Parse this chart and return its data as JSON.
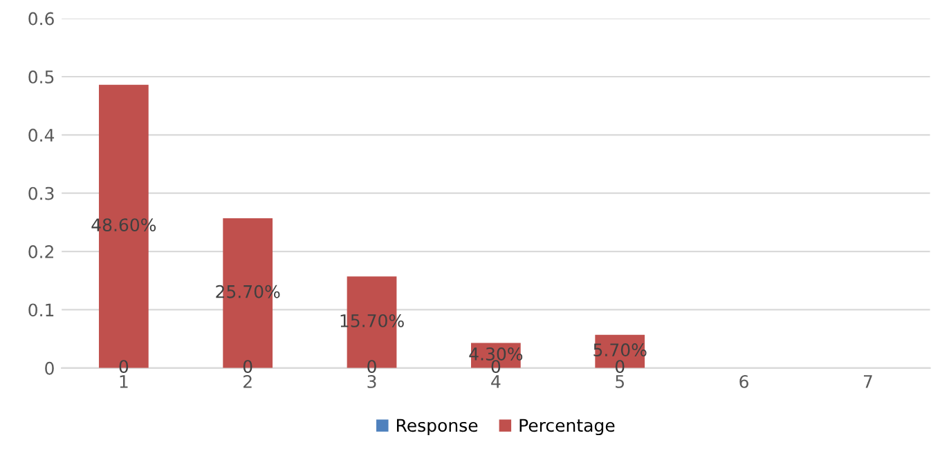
{
  "chart_data": {
    "type": "bar",
    "categories": [
      "1",
      "2",
      "3",
      "4",
      "5",
      "6",
      "7"
    ],
    "series": [
      {
        "name": "Response",
        "color": "#4f81bd",
        "values": [
          0,
          0,
          0,
          0,
          0,
          null,
          null
        ],
        "value_labels": [
          "0",
          "0",
          "0",
          "0",
          "0",
          null,
          null
        ]
      },
      {
        "name": "Percentage",
        "color": "#c0504d",
        "values": [
          0.486,
          0.257,
          0.157,
          0.043,
          0.057,
          null,
          null
        ],
        "value_labels": [
          "48.60%",
          "25.70%",
          "15.70%",
          "4.30%",
          "5.70%",
          null,
          null
        ]
      }
    ],
    "ylim": [
      0,
      0.6
    ],
    "yticks": [
      0,
      0.1,
      0.2,
      0.3,
      0.4,
      0.5,
      0.6
    ],
    "grid": "y",
    "legend": "bottom"
  }
}
